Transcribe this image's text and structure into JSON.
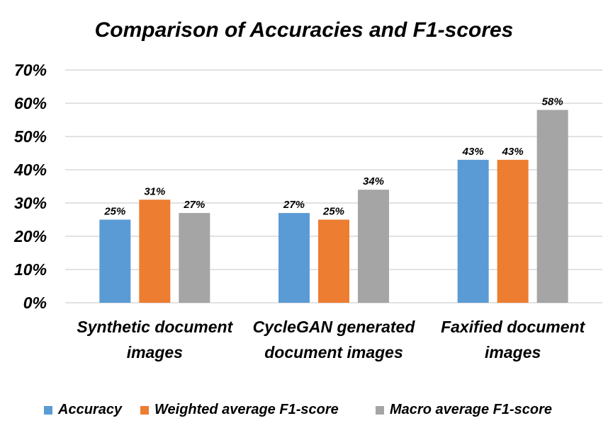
{
  "chart_data": {
    "type": "bar",
    "title": "Comparison of Accuracies and F1-scores",
    "xlabel": "",
    "ylabel": "",
    "ylim": [
      0,
      70
    ],
    "y_unit": "%",
    "y_ticks": [
      0,
      10,
      20,
      30,
      40,
      50,
      60,
      70
    ],
    "grid": true,
    "legend_position": "bottom",
    "categories": [
      [
        "Synthetic document",
        "images"
      ],
      [
        "CycleGAN generated",
        "document images"
      ],
      [
        "Faxified document",
        "images"
      ]
    ],
    "series": [
      {
        "name": "Accuracy",
        "color": "#5B9BD5",
        "values": [
          25,
          27,
          43
        ]
      },
      {
        "name": "Weighted average F1-score",
        "color": "#ED7D31",
        "values": [
          31,
          25,
          43
        ]
      },
      {
        "name": "Macro average F1-score",
        "color": "#A5A5A5",
        "values": [
          27,
          34,
          58
        ]
      }
    ]
  }
}
